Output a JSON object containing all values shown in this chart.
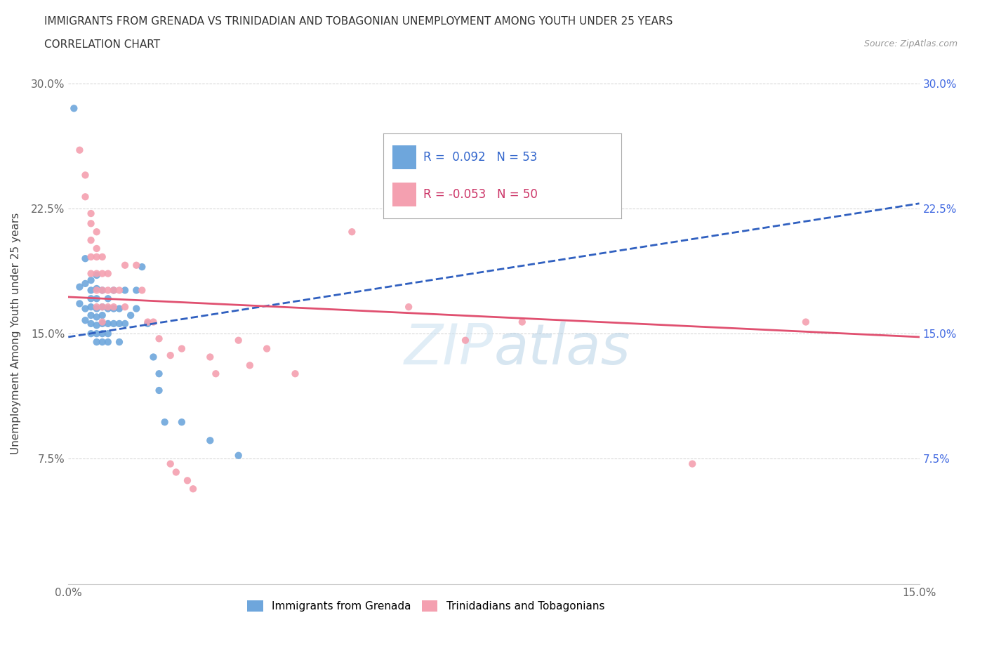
{
  "title_line1": "IMMIGRANTS FROM GRENADA VS TRINIDADIAN AND TOBAGONIAN UNEMPLOYMENT AMONG YOUTH UNDER 25 YEARS",
  "title_line2": "CORRELATION CHART",
  "source": "Source: ZipAtlas.com",
  "xlabel": "",
  "ylabel": "Unemployment Among Youth under 25 years",
  "xmin": 0.0,
  "xmax": 0.15,
  "ymin": 0.0,
  "ymax": 0.3,
  "xticks": [
    0.0,
    0.025,
    0.05,
    0.075,
    0.1,
    0.125,
    0.15
  ],
  "yticks": [
    0.0,
    0.075,
    0.15,
    0.225,
    0.3
  ],
  "blue_color": "#6EA6DC",
  "pink_color": "#F4A0B0",
  "blue_line_color": "#3060C0",
  "pink_line_color": "#E05070",
  "watermark": "ZIPatlas",
  "blue_line_x": [
    0.0,
    0.15
  ],
  "blue_line_y": [
    0.148,
    0.228
  ],
  "pink_line_x": [
    0.0,
    0.15
  ],
  "pink_line_y": [
    0.172,
    0.148
  ],
  "scatter_blue": [
    [
      0.001,
      0.285
    ],
    [
      0.002,
      0.178
    ],
    [
      0.002,
      0.168
    ],
    [
      0.003,
      0.195
    ],
    [
      0.003,
      0.18
    ],
    [
      0.003,
      0.165
    ],
    [
      0.003,
      0.158
    ],
    [
      0.004,
      0.182
    ],
    [
      0.004,
      0.176
    ],
    [
      0.004,
      0.171
    ],
    [
      0.004,
      0.166
    ],
    [
      0.004,
      0.161
    ],
    [
      0.004,
      0.156
    ],
    [
      0.004,
      0.15
    ],
    [
      0.005,
      0.185
    ],
    [
      0.005,
      0.177
    ],
    [
      0.005,
      0.171
    ],
    [
      0.005,
      0.165
    ],
    [
      0.005,
      0.16
    ],
    [
      0.005,
      0.155
    ],
    [
      0.005,
      0.15
    ],
    [
      0.005,
      0.145
    ],
    [
      0.006,
      0.176
    ],
    [
      0.006,
      0.166
    ],
    [
      0.006,
      0.161
    ],
    [
      0.006,
      0.156
    ],
    [
      0.006,
      0.15
    ],
    [
      0.006,
      0.145
    ],
    [
      0.007,
      0.171
    ],
    [
      0.007,
      0.165
    ],
    [
      0.007,
      0.156
    ],
    [
      0.007,
      0.15
    ],
    [
      0.007,
      0.145
    ],
    [
      0.008,
      0.176
    ],
    [
      0.008,
      0.165
    ],
    [
      0.008,
      0.156
    ],
    [
      0.009,
      0.165
    ],
    [
      0.009,
      0.156
    ],
    [
      0.009,
      0.145
    ],
    [
      0.01,
      0.176
    ],
    [
      0.01,
      0.156
    ],
    [
      0.011,
      0.161
    ],
    [
      0.012,
      0.176
    ],
    [
      0.012,
      0.165
    ],
    [
      0.013,
      0.19
    ],
    [
      0.014,
      0.156
    ],
    [
      0.015,
      0.136
    ],
    [
      0.016,
      0.126
    ],
    [
      0.016,
      0.116
    ],
    [
      0.017,
      0.097
    ],
    [
      0.02,
      0.097
    ],
    [
      0.025,
      0.086
    ],
    [
      0.03,
      0.077
    ]
  ],
  "scatter_pink": [
    [
      0.002,
      0.26
    ],
    [
      0.003,
      0.245
    ],
    [
      0.003,
      0.232
    ],
    [
      0.004,
      0.222
    ],
    [
      0.004,
      0.216
    ],
    [
      0.004,
      0.206
    ],
    [
      0.004,
      0.196
    ],
    [
      0.004,
      0.186
    ],
    [
      0.005,
      0.211
    ],
    [
      0.005,
      0.201
    ],
    [
      0.005,
      0.196
    ],
    [
      0.005,
      0.186
    ],
    [
      0.005,
      0.176
    ],
    [
      0.005,
      0.166
    ],
    [
      0.006,
      0.196
    ],
    [
      0.006,
      0.186
    ],
    [
      0.006,
      0.176
    ],
    [
      0.006,
      0.166
    ],
    [
      0.006,
      0.157
    ],
    [
      0.007,
      0.186
    ],
    [
      0.007,
      0.176
    ],
    [
      0.007,
      0.166
    ],
    [
      0.008,
      0.176
    ],
    [
      0.008,
      0.166
    ],
    [
      0.009,
      0.176
    ],
    [
      0.01,
      0.191
    ],
    [
      0.01,
      0.166
    ],
    [
      0.012,
      0.191
    ],
    [
      0.013,
      0.176
    ],
    [
      0.014,
      0.157
    ],
    [
      0.015,
      0.157
    ],
    [
      0.016,
      0.147
    ],
    [
      0.018,
      0.137
    ],
    [
      0.018,
      0.072
    ],
    [
      0.019,
      0.067
    ],
    [
      0.02,
      0.141
    ],
    [
      0.021,
      0.062
    ],
    [
      0.022,
      0.057
    ],
    [
      0.025,
      0.136
    ],
    [
      0.026,
      0.126
    ],
    [
      0.03,
      0.146
    ],
    [
      0.032,
      0.131
    ],
    [
      0.035,
      0.141
    ],
    [
      0.04,
      0.126
    ],
    [
      0.05,
      0.211
    ],
    [
      0.06,
      0.166
    ],
    [
      0.07,
      0.146
    ],
    [
      0.08,
      0.157
    ],
    [
      0.11,
      0.072
    ],
    [
      0.13,
      0.157
    ]
  ]
}
